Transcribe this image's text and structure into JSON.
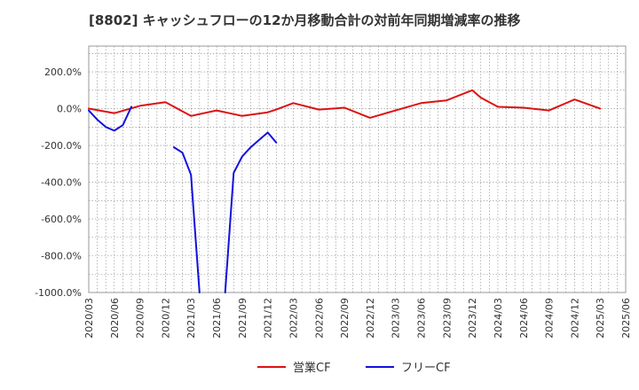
{
  "title": "[8802]  キャッシュフローの12か月移動合計の対前年同期増減率の推移",
  "chart_data": {
    "type": "line",
    "title": "[8802]  キャッシュフローの12か月移動合計の対前年同期増減率の推移",
    "xlabel": "",
    "ylabel": "",
    "ylim": [
      -1000,
      340
    ],
    "xlim": [
      "2020/03",
      "2025/06"
    ],
    "y_ticks": [
      "200.0%",
      "0.0%",
      "-200.0%",
      "-400.0%",
      "-600.0%",
      "-800.0%",
      "-1000.0%"
    ],
    "y_tick_values": [
      200,
      0,
      -200,
      -400,
      -600,
      -800,
      -1000
    ],
    "x_ticks": [
      "2020/03",
      "2020/06",
      "2020/09",
      "2020/12",
      "2021/03",
      "2021/06",
      "2021/09",
      "2021/12",
      "2022/03",
      "2022/06",
      "2022/09",
      "2022/12",
      "2023/03",
      "2023/06",
      "2023/09",
      "2023/12",
      "2024/03",
      "2024/06",
      "2024/09",
      "2024/12",
      "2025/03",
      "2025/06"
    ],
    "grid": true,
    "legend_position": "bottom",
    "series": [
      {
        "name": "営業CF",
        "color": "#dd1111",
        "points": [
          [
            "2020/03",
            0
          ],
          [
            "2020/06",
            -25
          ],
          [
            "2020/09",
            15
          ],
          [
            "2020/12",
            35
          ],
          [
            "2021/03",
            -40
          ],
          [
            "2021/06",
            -10
          ],
          [
            "2021/09",
            -40
          ],
          [
            "2021/12",
            -20
          ],
          [
            "2022/01",
            -5
          ],
          [
            "2022/03",
            30
          ],
          [
            "2022/06",
            -5
          ],
          [
            "2022/09",
            5
          ],
          [
            "2022/12",
            -50
          ],
          [
            "2023/03",
            -10
          ],
          [
            "2023/06",
            30
          ],
          [
            "2023/09",
            45
          ],
          [
            "2023/12",
            100
          ],
          [
            "2024/01",
            60
          ],
          [
            "2024/03",
            10
          ],
          [
            "2024/06",
            5
          ],
          [
            "2024/09",
            -10
          ],
          [
            "2024/12",
            50
          ],
          [
            "2025/03",
            0
          ]
        ]
      },
      {
        "name": "フリーCF",
        "color": "#1111dd",
        "segments": [
          [
            [
              "2020/03",
              -10
            ],
            [
              "2020/04",
              -60
            ],
            [
              "2020/05",
              -100
            ],
            [
              "2020/06",
              -120
            ],
            [
              "2020/07",
              -90
            ],
            [
              "2020/08",
              10
            ]
          ],
          [
            [
              "2021/01",
              -210
            ],
            [
              "2021/02",
              -240
            ],
            [
              "2021/03",
              -360
            ],
            [
              "2021/04",
              -1000
            ]
          ],
          [
            [
              "2021/07",
              -1000
            ],
            [
              "2021/08",
              -350
            ],
            [
              "2021/09",
              -260
            ],
            [
              "2021/10",
              -210
            ],
            [
              "2021/11",
              -170
            ],
            [
              "2021/12",
              -130
            ],
            [
              "2022/01",
              -185
            ]
          ]
        ]
      }
    ]
  }
}
